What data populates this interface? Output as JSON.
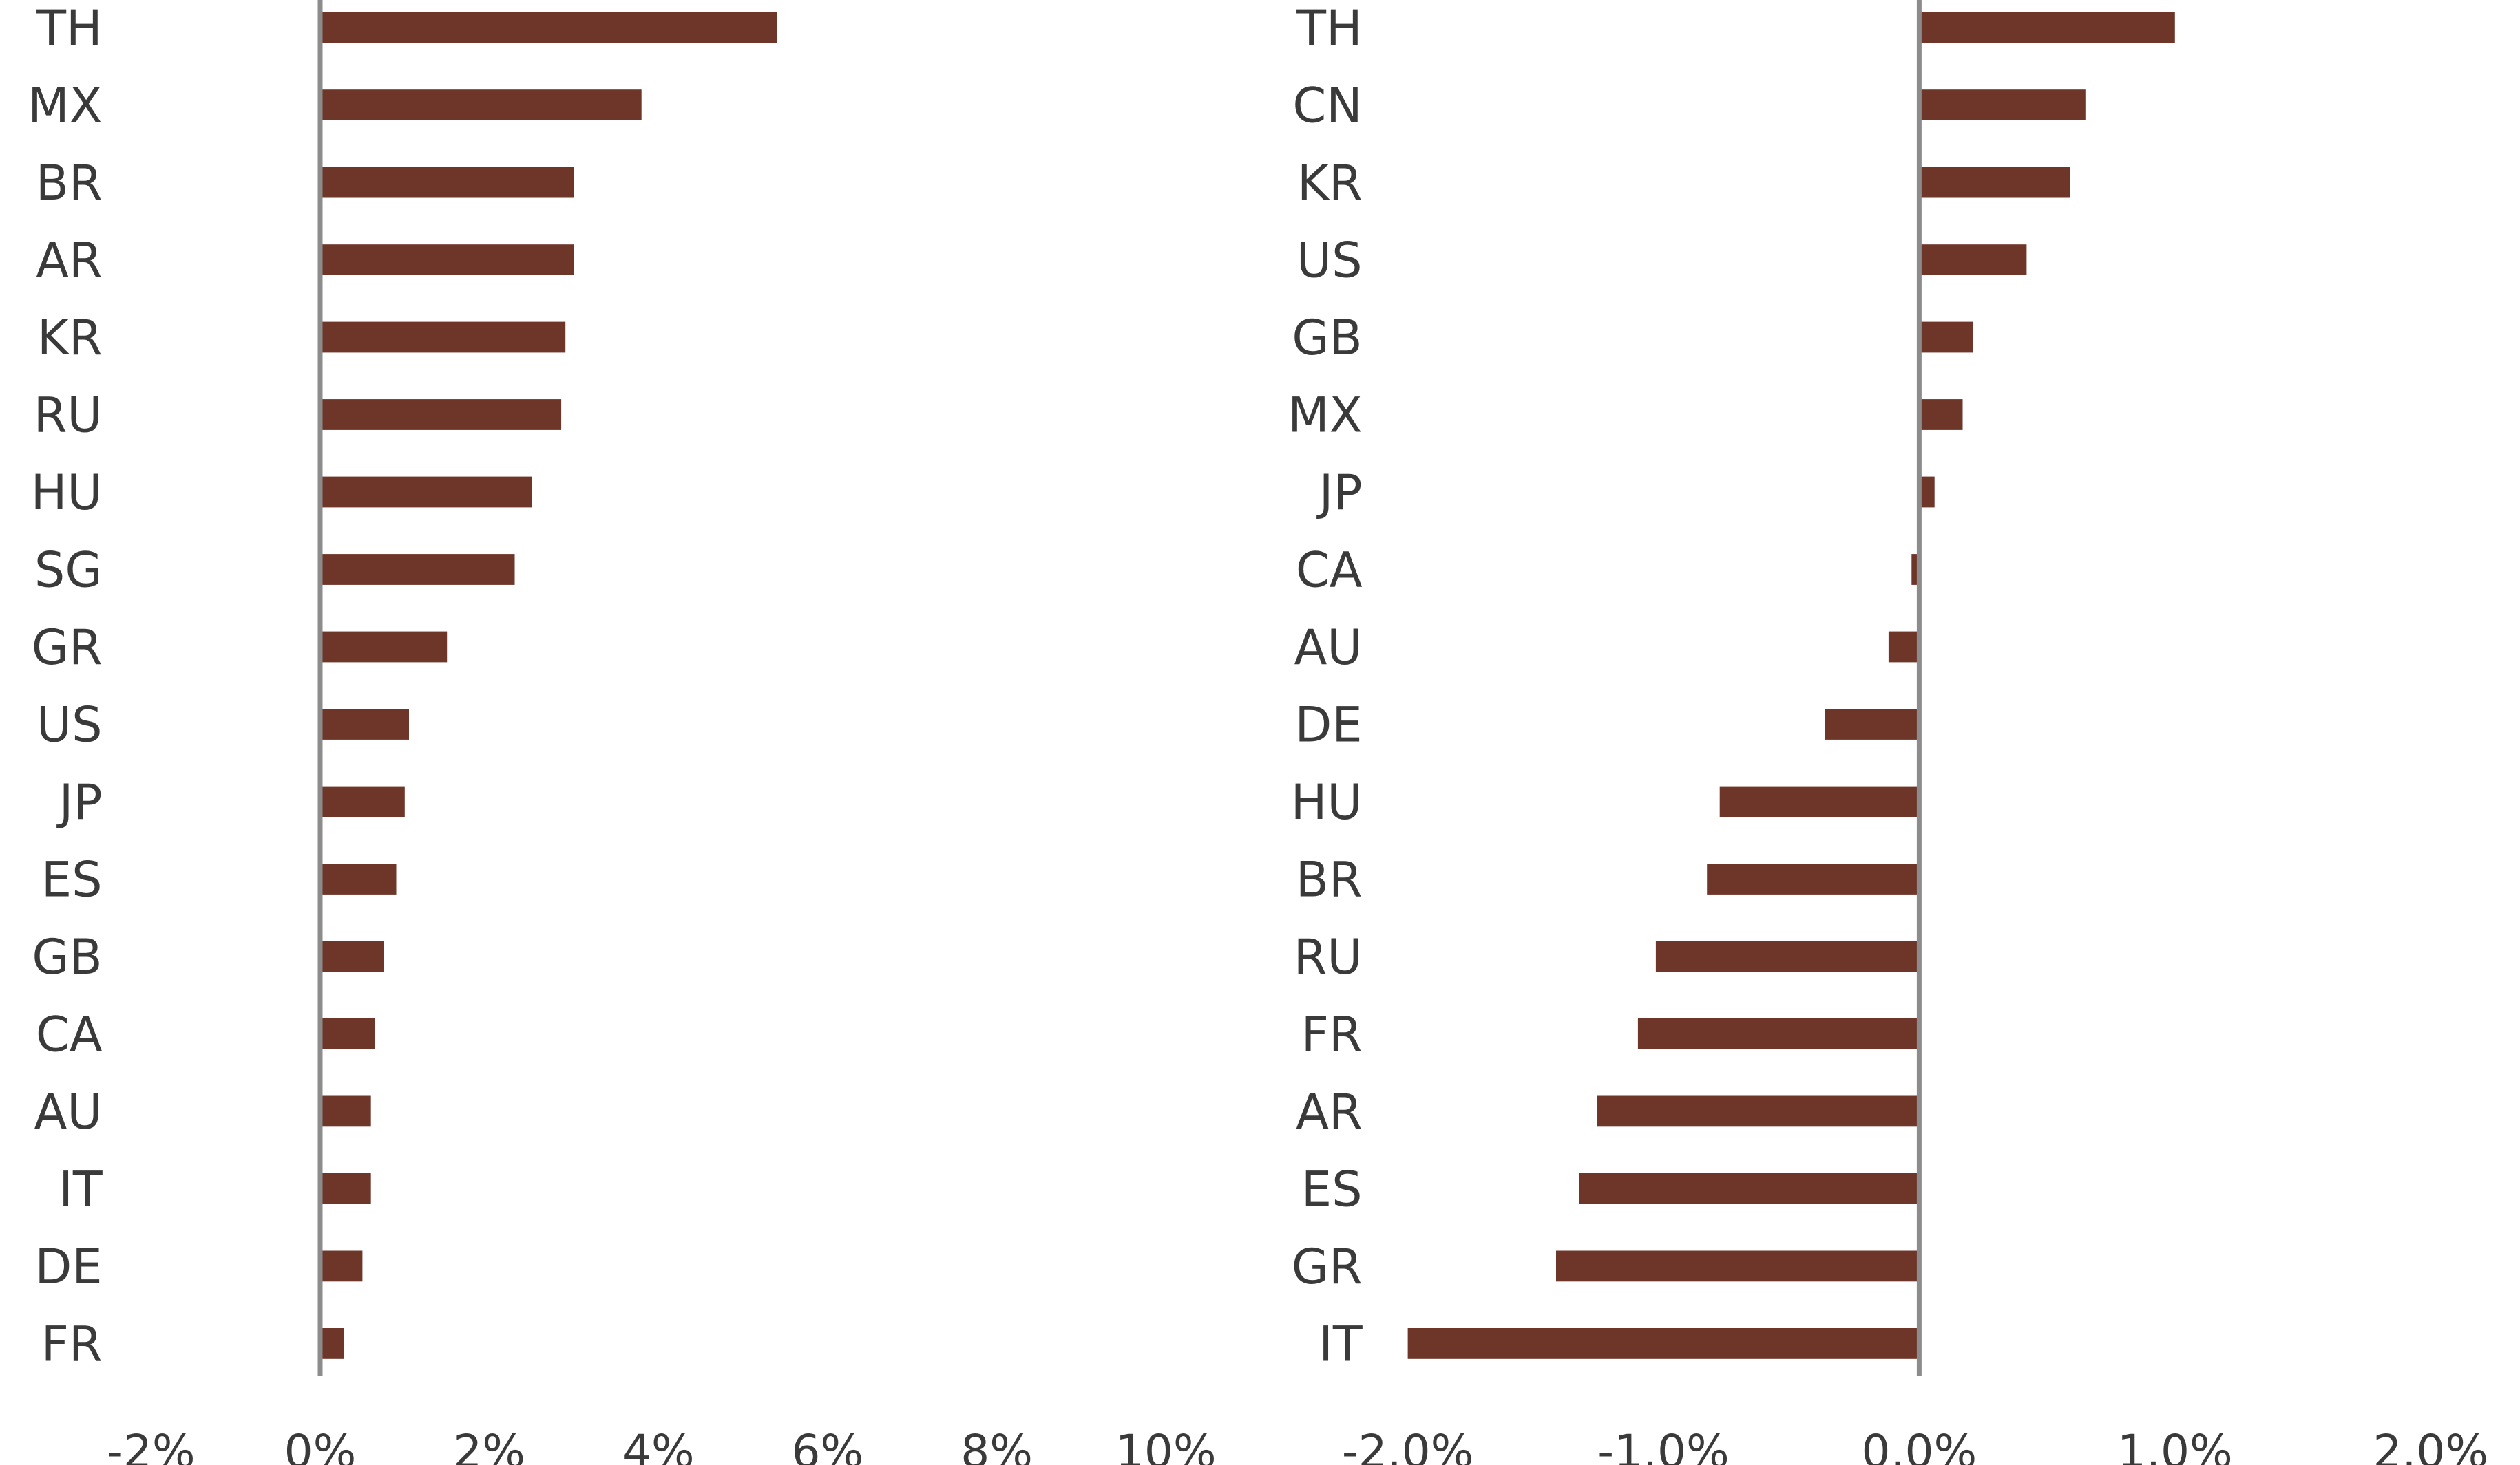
{
  "chart_data": [
    {
      "type": "bar",
      "orientation": "horizontal",
      "title": "",
      "xlabel": "",
      "ylabel": "",
      "xlim": [
        -2,
        10
      ],
      "ticks": [
        "-2%",
        "0%",
        "2%",
        "4%",
        "6%",
        "8%",
        "10%"
      ],
      "tick_values": [
        -2,
        0,
        2,
        4,
        6,
        8,
        10
      ],
      "grid": false,
      "legend": "none",
      "bar_color": "#6e3529",
      "axis_color": "#8c8c8c",
      "categories": [
        "TH",
        "MX",
        "BR",
        "AR",
        "KR",
        "RU",
        "HU",
        "SG",
        "GR",
        "US",
        "JP",
        "ES",
        "GB",
        "CA",
        "AU",
        "IT",
        "DE",
        "FR"
      ],
      "values": [
        5.4,
        3.8,
        3.0,
        3.0,
        2.9,
        2.85,
        2.5,
        2.3,
        1.5,
        1.05,
        1.0,
        0.9,
        0.75,
        0.65,
        0.6,
        0.6,
        0.5,
        0.28
      ]
    },
    {
      "type": "bar",
      "orientation": "horizontal",
      "title": "",
      "xlabel": "",
      "ylabel": "",
      "xlim": [
        -2.0,
        2.0
      ],
      "ticks": [
        "-2.0%",
        "-1.0%",
        "0.0%",
        "1.0%",
        "2.0%"
      ],
      "tick_values": [
        -2.0,
        -1.0,
        0.0,
        1.0,
        2.0
      ],
      "grid": false,
      "legend": "none",
      "bar_color": "#6e3529",
      "axis_color": "#8c8c8c",
      "categories": [
        "TH",
        "CN",
        "KR",
        "US",
        "GB",
        "MX",
        "JP",
        "CA",
        "AU",
        "DE",
        "HU",
        "BR",
        "RU",
        "FR",
        "AR",
        "ES",
        "GR",
        "IT"
      ],
      "values": [
        1.0,
        0.65,
        0.59,
        0.42,
        0.21,
        0.17,
        0.06,
        -0.03,
        -0.12,
        -0.37,
        -0.78,
        -0.83,
        -1.03,
        -1.1,
        -1.26,
        -1.33,
        -1.42,
        -2.0
      ]
    }
  ]
}
